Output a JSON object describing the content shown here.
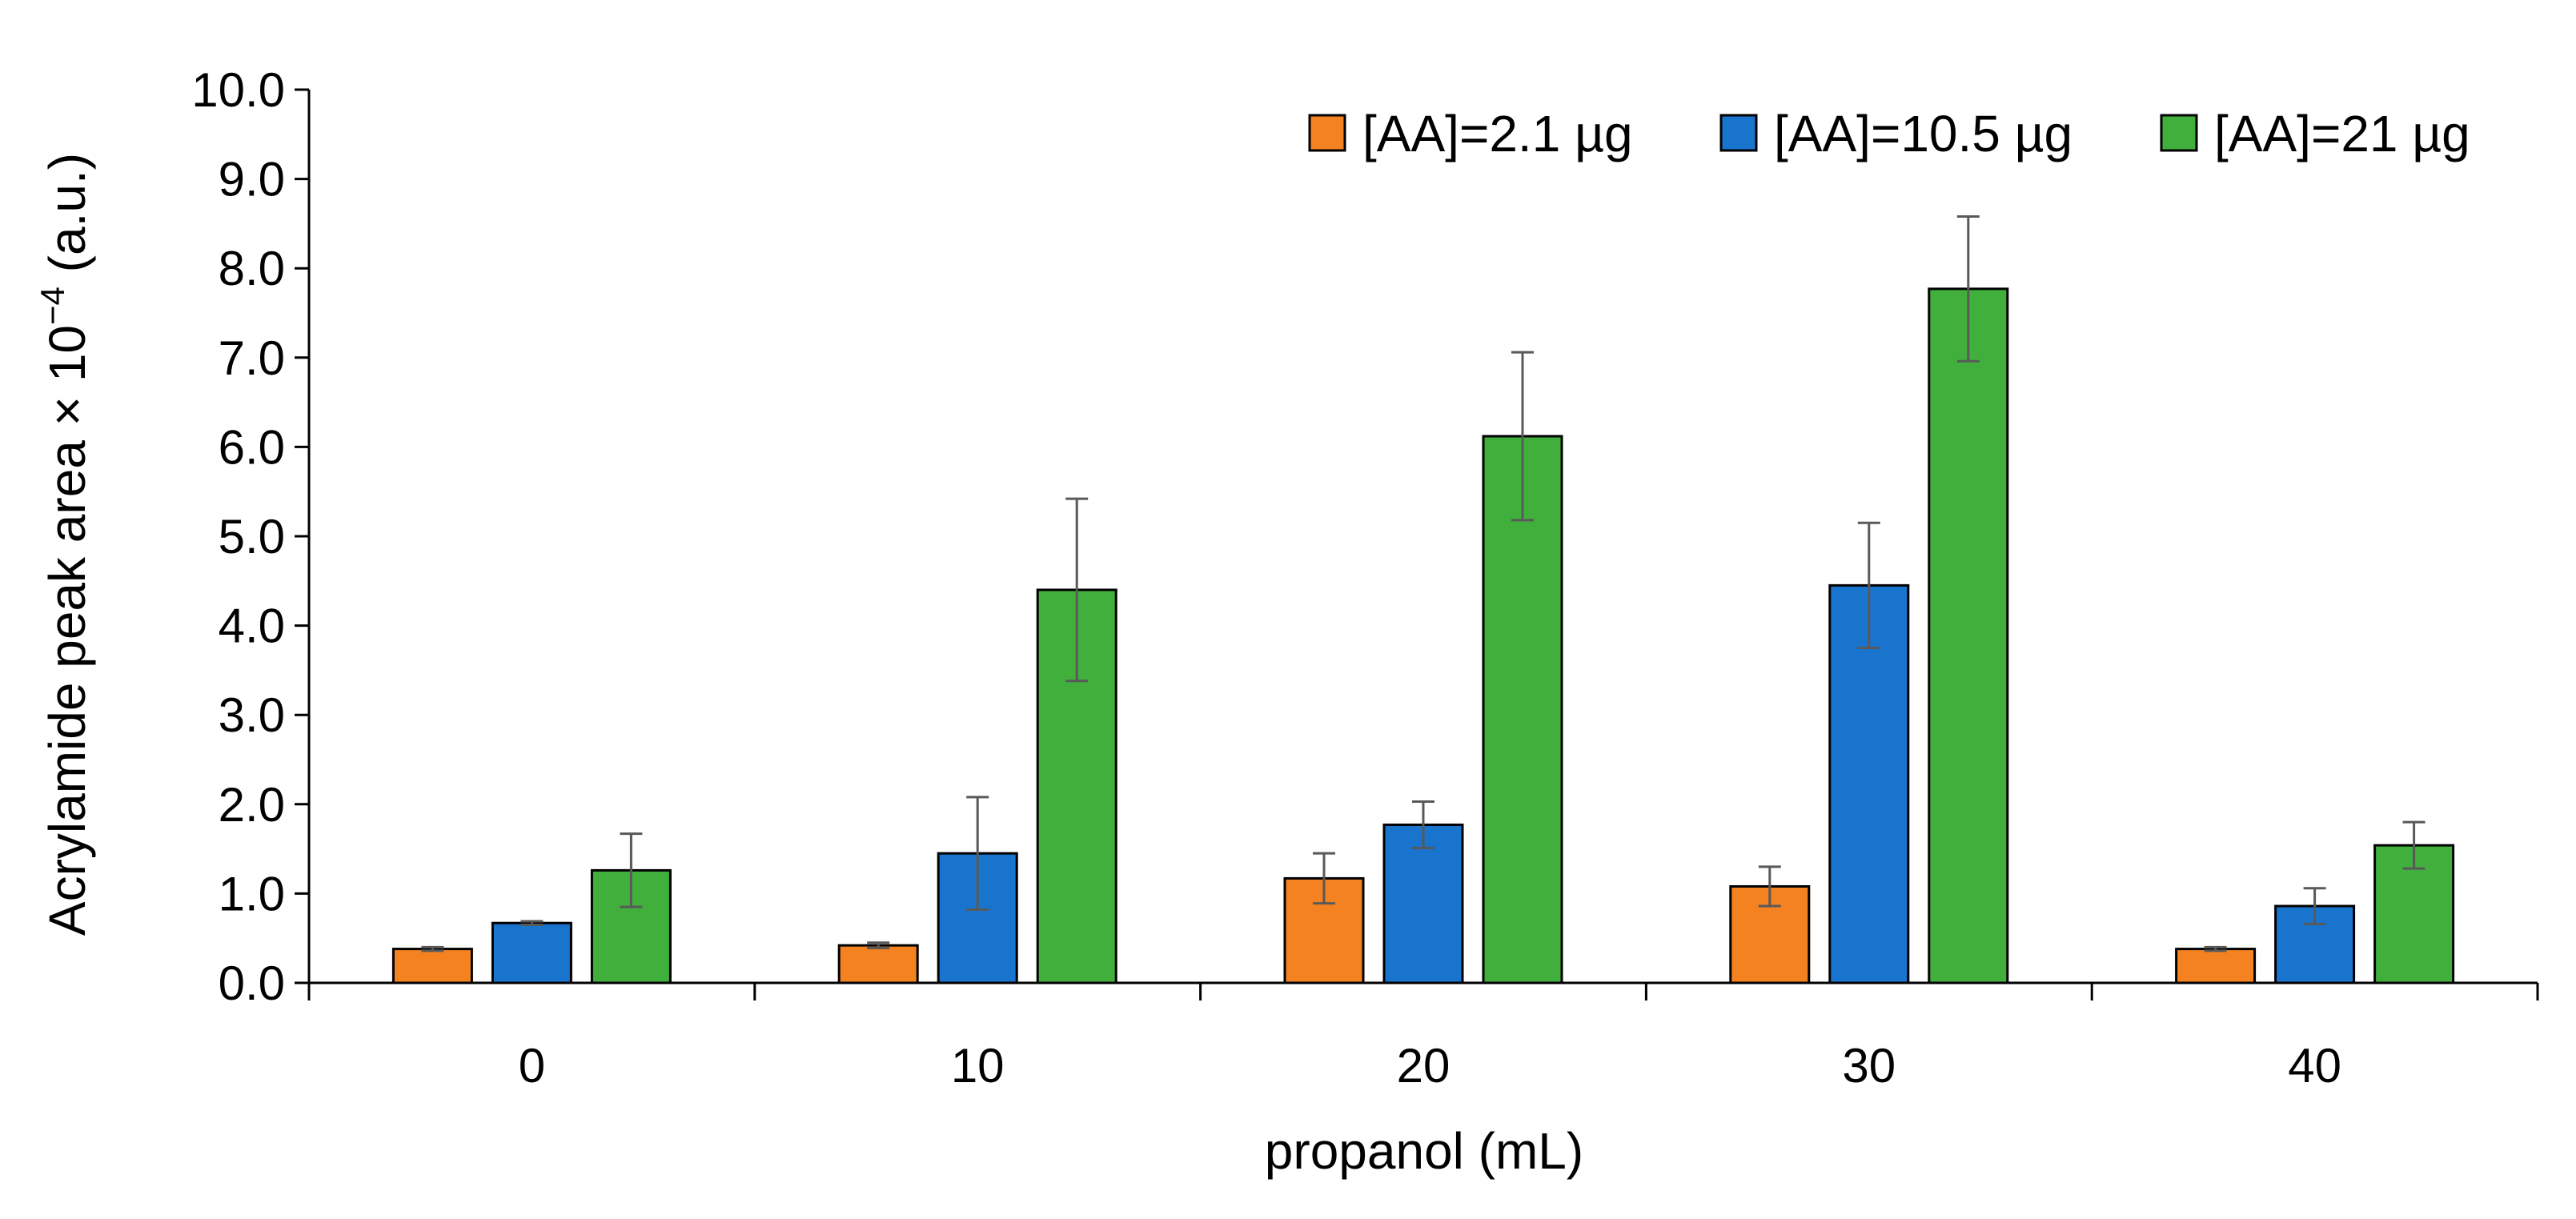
{
  "chart_data": {
    "type": "bar",
    "title": "",
    "xlabel": "propanol (mL)",
    "ylabel": "Acrylamide peak area × 10",
    "ylabel_exponent": "−4",
    "ylabel_unit": "(a.u.)",
    "categories": [
      "0",
      "10",
      "20",
      "30",
      "40"
    ],
    "ylim": [
      0,
      10
    ],
    "yticks": [
      "0.0",
      "1.0",
      "2.0",
      "3.0",
      "4.0",
      "5.0",
      "6.0",
      "7.0",
      "8.0",
      "9.0",
      "10.0"
    ],
    "grid": false,
    "legend_position": "top-right",
    "series": [
      {
        "name": "[AA]=2.1 µg",
        "color": "#F58220",
        "values": [
          0.38,
          0.42,
          1.17,
          1.08,
          0.38
        ],
        "errors": [
          0.02,
          0.03,
          0.28,
          0.22,
          0.02
        ]
      },
      {
        "name": "[AA]=10.5 µg",
        "color": "#1874CD",
        "values": [
          0.67,
          1.45,
          1.77,
          4.45,
          0.86
        ],
        "errors": [
          0.02,
          0.63,
          0.26,
          0.7,
          0.2
        ]
      },
      {
        "name": "[AA]=21 µg",
        "color": "#41AF3C",
        "values": [
          1.26,
          4.4,
          6.12,
          7.77,
          1.54
        ],
        "errors": [
          0.41,
          1.02,
          0.94,
          0.81,
          0.26
        ]
      }
    ]
  }
}
